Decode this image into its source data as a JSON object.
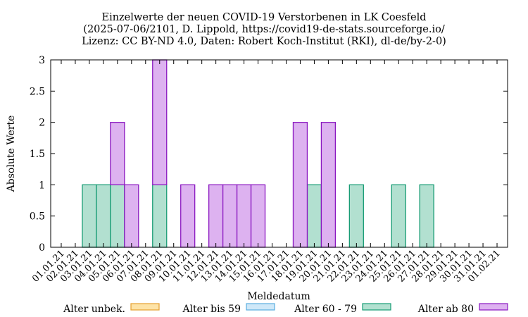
{
  "chart_data": {
    "type": "bar",
    "title_lines": [
      "Einzelwerte der neuen COVID-19 Verstorbenen in LK Coesfeld",
      "(2025-07-06/2101, D. Lippold, https://covid19-de-stats.sourceforge.io/",
      "Lizenz: CC BY-ND 4.0, Daten: Robert Koch-Institut (RKI), dl-de/by-2-0)"
    ],
    "xlabel": "Meldedatum",
    "ylabel": "Absolute Werte",
    "ylim": [
      0,
      3
    ],
    "yticks": [
      "0",
      "0.5",
      "1",
      "1.5",
      "2",
      "2.5",
      "3"
    ],
    "categories": [
      "01.01.21",
      "02.01.21",
      "03.01.21",
      "04.01.21",
      "05.01.21",
      "06.01.21",
      "07.01.21",
      "08.01.21",
      "09.01.21",
      "10.01.21",
      "11.01.21",
      "12.01.21",
      "13.01.21",
      "14.01.21",
      "15.01.21",
      "16.01.21",
      "17.01.21",
      "18.01.21",
      "19.01.21",
      "20.01.21",
      "21.01.21",
      "22.01.21",
      "23.01.21",
      "24.01.21",
      "25.01.21",
      "26.01.21",
      "27.01.21",
      "28.01.21",
      "29.01.21",
      "30.01.21",
      "31.01.21",
      "01.02.21"
    ],
    "stacked": true,
    "grid": false,
    "legend_position": "bottom",
    "series": [
      {
        "name": "Alter unbek.",
        "fill": "#fde3a7",
        "stroke": "#e6a030",
        "values": [
          0,
          0,
          0,
          0,
          0,
          0,
          0,
          0,
          0,
          0,
          0,
          0,
          0,
          0,
          0,
          0,
          0,
          0,
          0,
          0,
          0,
          0,
          0,
          0,
          0,
          0,
          0,
          0,
          0,
          0,
          0,
          0
        ]
      },
      {
        "name": "Alter bis 59",
        "fill": "#cfe8f8",
        "stroke": "#5aaee0",
        "values": [
          0,
          0,
          0,
          0,
          0,
          0,
          0,
          0,
          0,
          0,
          0,
          0,
          0,
          0,
          0,
          0,
          0,
          0,
          0,
          0,
          0,
          0,
          0,
          0,
          0,
          0,
          0,
          0,
          0,
          0,
          0,
          0
        ]
      },
      {
        "name": "Alter 60 - 79",
        "fill": "#b2e0d0",
        "stroke": "#179c74",
        "values": [
          0,
          0,
          1,
          1,
          1,
          0,
          0,
          1,
          0,
          0,
          0,
          0,
          0,
          0,
          0,
          0,
          0,
          0,
          1,
          0,
          0,
          1,
          0,
          0,
          1,
          0,
          1,
          0,
          0,
          0,
          0,
          0
        ]
      },
      {
        "name": "Alter ab 80",
        "fill": "#ddb2f0",
        "stroke": "#8a17c0",
        "values": [
          0,
          0,
          0,
          0,
          1,
          1,
          0,
          2,
          0,
          1,
          0,
          1,
          1,
          1,
          1,
          0,
          0,
          2,
          0,
          2,
          0,
          0,
          0,
          0,
          0,
          0,
          0,
          0,
          0,
          0,
          0,
          0
        ]
      }
    ]
  }
}
